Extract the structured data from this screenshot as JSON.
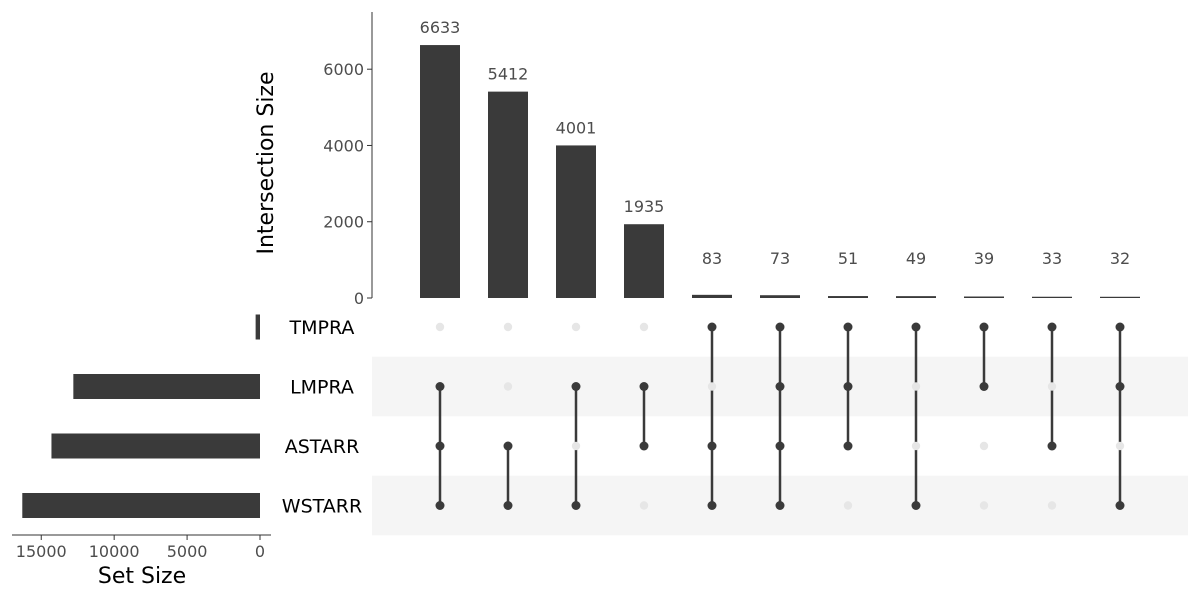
{
  "chart_data": {
    "type": "upset",
    "intersections_axis": {
      "label": "Intersection Size",
      "ticks": [
        0,
        2000,
        4000,
        6000
      ],
      "tick_labels": [
        "0",
        "2000",
        "4000",
        "6000"
      ],
      "ylim": [
        0,
        7500
      ]
    },
    "setsize_axis": {
      "label": "Set Size",
      "ticks": [
        15000,
        10000,
        5000,
        0
      ],
      "tick_labels": [
        "15000",
        "10000",
        "5000",
        "0"
      ],
      "xlim": [
        16800,
        0
      ]
    },
    "sets": [
      {
        "name": "TMPRA",
        "size": 300
      },
      {
        "name": "LMPRA",
        "size": 12800
      },
      {
        "name": "ASTARR",
        "size": 14300
      },
      {
        "name": "WSTARR",
        "size": 16300
      }
    ],
    "intersections": [
      {
        "size": 6633,
        "label": "6633",
        "members": [
          "LMPRA",
          "ASTARR",
          "WSTARR"
        ]
      },
      {
        "size": 5412,
        "label": "5412",
        "members": [
          "ASTARR",
          "WSTARR"
        ]
      },
      {
        "size": 4001,
        "label": "4001",
        "members": [
          "LMPRA",
          "WSTARR"
        ]
      },
      {
        "size": 1935,
        "label": "1935",
        "members": [
          "LMPRA",
          "ASTARR"
        ]
      },
      {
        "size": 83,
        "label": "83",
        "members": [
          "TMPRA",
          "ASTARR",
          "WSTARR"
        ]
      },
      {
        "size": 73,
        "label": "73",
        "members": [
          "TMPRA",
          "LMPRA",
          "ASTARR",
          "WSTARR"
        ]
      },
      {
        "size": 51,
        "label": "51",
        "members": [
          "TMPRA",
          "LMPRA",
          "ASTARR"
        ]
      },
      {
        "size": 49,
        "label": "49",
        "members": [
          "TMPRA",
          "WSTARR"
        ]
      },
      {
        "size": 39,
        "label": "39",
        "members": [
          "TMPRA",
          "LMPRA"
        ]
      },
      {
        "size": 33,
        "label": "33",
        "members": [
          "TMPRA",
          "ASTARR"
        ]
      },
      {
        "size": 32,
        "label": "32",
        "members": [
          "TMPRA",
          "LMPRA",
          "WSTARR"
        ]
      }
    ],
    "colors": {
      "bar": "#3a3a3a",
      "dot_active": "#3a3a3a",
      "dot_inactive": "#e6e6e6",
      "row_stripe": "#f5f5f5",
      "axis": "#333333"
    },
    "grid": false
  }
}
